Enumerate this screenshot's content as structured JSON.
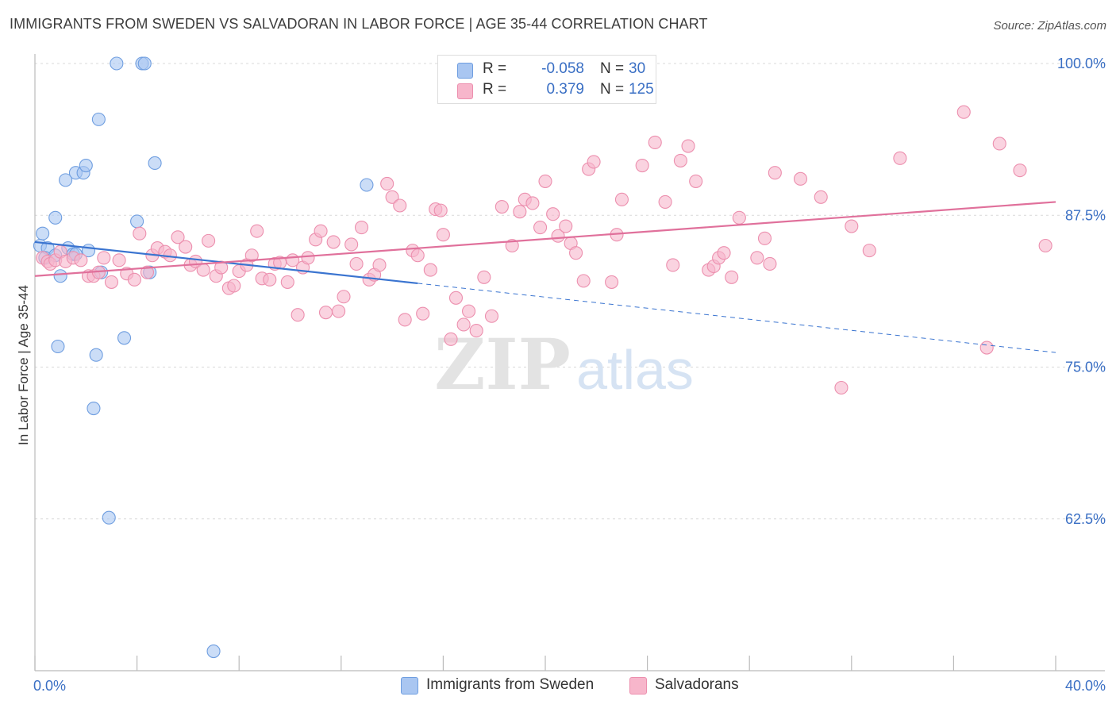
{
  "title": "IMMIGRANTS FROM SWEDEN VS SALVADORAN IN LABOR FORCE | AGE 35-44 CORRELATION CHART",
  "source": "Source: ZipAtlas.com",
  "watermark": {
    "zip": "ZIP",
    "atlas": "atlas"
  },
  "legend_stats": [
    {
      "r_label": "R =",
      "r_value": "-0.058",
      "n_label": "N =",
      "n_value": "30",
      "color": "#a9c6f1",
      "border": "#6f9ee0"
    },
    {
      "r_label": "R =",
      "r_value": "0.379",
      "n_label": "N =",
      "n_value": "125",
      "color": "#f7b6cb",
      "border": "#ec8fae"
    }
  ],
  "bottom_legend": [
    {
      "label": "Immigrants from Sweden",
      "color": "#a9c6f1",
      "border": "#6f9ee0"
    },
    {
      "label": "Salvadorans",
      "color": "#f7b6cb",
      "border": "#ec8fae"
    }
  ],
  "chart_data": {
    "type": "scatter",
    "title": "IMMIGRANTS FROM SWEDEN VS SALVADORAN IN LABOR FORCE | AGE 35-44 CORRELATION CHART",
    "xlabel": "",
    "ylabel": "In Labor Force | Age 35-44",
    "xlim": [
      0,
      40
    ],
    "ylim": [
      50,
      100
    ],
    "x_tick_labels": [
      {
        "value": 0,
        "label": "0.0%"
      },
      {
        "value": 40,
        "label": "40.0%"
      }
    ],
    "y_tick_labels": [
      {
        "value": 100,
        "label": "100.0%"
      },
      {
        "value": 87.5,
        "label": "87.5%"
      },
      {
        "value": 75,
        "label": "75.0%"
      },
      {
        "value": 62.5,
        "label": "62.5%"
      }
    ],
    "grid": true,
    "legend_position": "top-center",
    "series": [
      {
        "name": "Immigrants from Sweden",
        "color": "#a9c6f1",
        "edge": "#6f9ee0",
        "trend": {
          "x_start": 0,
          "y_start": 85.3,
          "x_solid_end": 15,
          "y_solid_end": 81.9,
          "x_dash_end": 40,
          "y_dash_end": 76.2,
          "color": "#3a74d0"
        },
        "points": [
          [
            3.2,
            100.0
          ],
          [
            4.2,
            100.0
          ],
          [
            4.3,
            100.0
          ],
          [
            2.5,
            95.4
          ],
          [
            4.7,
            91.8
          ],
          [
            1.6,
            91.0
          ],
          [
            1.9,
            91.0
          ],
          [
            2.0,
            91.6
          ],
          [
            1.2,
            90.4
          ],
          [
            13.0,
            90.0
          ],
          [
            0.8,
            87.3
          ],
          [
            4.0,
            87.0
          ],
          [
            0.3,
            86.0
          ],
          [
            0.2,
            85.0
          ],
          [
            0.5,
            84.8
          ],
          [
            1.3,
            84.8
          ],
          [
            2.1,
            84.6
          ],
          [
            1.5,
            84.3
          ],
          [
            0.4,
            84.0
          ],
          [
            1.6,
            84.3
          ],
          [
            0.8,
            84.2
          ],
          [
            2.6,
            82.8
          ],
          [
            4.5,
            82.8
          ],
          [
            1.0,
            82.5
          ],
          [
            3.5,
            77.4
          ],
          [
            0.9,
            76.7
          ],
          [
            2.4,
            76.0
          ],
          [
            2.3,
            71.6
          ],
          [
            2.9,
            62.6
          ],
          [
            7.0,
            51.6
          ]
        ]
      },
      {
        "name": "Salvadorans",
        "color": "#f7b6cb",
        "edge": "#ec8fae",
        "trend": {
          "x_start": 0,
          "y_start": 82.5,
          "x_end": 40,
          "y_end": 88.6,
          "color": "#e0709b"
        },
        "points": [
          [
            0.3,
            84.0
          ],
          [
            0.5,
            83.7
          ],
          [
            0.6,
            83.5
          ],
          [
            0.8,
            83.8
          ],
          [
            1.0,
            84.5
          ],
          [
            1.2,
            83.7
          ],
          [
            1.5,
            84.0
          ],
          [
            1.8,
            83.8
          ],
          [
            2.1,
            82.5
          ],
          [
            2.3,
            82.5
          ],
          [
            2.5,
            82.8
          ],
          [
            2.7,
            84.0
          ],
          [
            3.0,
            82.0
          ],
          [
            3.3,
            83.8
          ],
          [
            3.6,
            82.7
          ],
          [
            3.9,
            82.2
          ],
          [
            4.1,
            86.0
          ],
          [
            4.4,
            82.8
          ],
          [
            4.6,
            84.2
          ],
          [
            4.8,
            84.8
          ],
          [
            5.1,
            84.5
          ],
          [
            5.3,
            84.2
          ],
          [
            5.6,
            85.7
          ],
          [
            5.9,
            84.9
          ],
          [
            6.1,
            83.4
          ],
          [
            6.3,
            83.7
          ],
          [
            6.6,
            83.0
          ],
          [
            6.8,
            85.4
          ],
          [
            7.1,
            82.5
          ],
          [
            7.3,
            83.2
          ],
          [
            7.6,
            81.5
          ],
          [
            7.8,
            81.7
          ],
          [
            8.0,
            82.9
          ],
          [
            8.3,
            83.4
          ],
          [
            8.5,
            84.2
          ],
          [
            8.7,
            86.2
          ],
          [
            8.9,
            82.3
          ],
          [
            9.2,
            82.2
          ],
          [
            9.4,
            83.5
          ],
          [
            9.6,
            83.6
          ],
          [
            9.9,
            82.0
          ],
          [
            10.1,
            83.8
          ],
          [
            10.3,
            79.3
          ],
          [
            10.5,
            83.2
          ],
          [
            10.7,
            84.0
          ],
          [
            11.0,
            85.5
          ],
          [
            11.2,
            86.2
          ],
          [
            11.4,
            79.5
          ],
          [
            11.7,
            85.3
          ],
          [
            11.9,
            79.6
          ],
          [
            12.1,
            80.8
          ],
          [
            12.4,
            85.1
          ],
          [
            12.6,
            83.5
          ],
          [
            12.8,
            86.5
          ],
          [
            13.1,
            82.2
          ],
          [
            13.3,
            82.6
          ],
          [
            13.5,
            83.4
          ],
          [
            13.8,
            90.1
          ],
          [
            14.0,
            89.0
          ],
          [
            14.3,
            88.3
          ],
          [
            14.5,
            78.9
          ],
          [
            14.8,
            84.6
          ],
          [
            15.0,
            84.2
          ],
          [
            15.2,
            79.4
          ],
          [
            15.5,
            83.0
          ],
          [
            15.7,
            88.0
          ],
          [
            16.0,
            85.9
          ],
          [
            16.3,
            77.3
          ],
          [
            16.5,
            80.7
          ],
          [
            16.8,
            78.5
          ],
          [
            17.0,
            79.6
          ],
          [
            17.3,
            78.0
          ],
          [
            17.6,
            82.4
          ],
          [
            17.9,
            79.2
          ],
          [
            18.3,
            88.2
          ],
          [
            18.7,
            85.0
          ],
          [
            19.0,
            87.8
          ],
          [
            19.2,
            88.8
          ],
          [
            19.5,
            88.5
          ],
          [
            19.8,
            86.5
          ],
          [
            20.0,
            90.3
          ],
          [
            20.3,
            87.6
          ],
          [
            20.5,
            85.8
          ],
          [
            20.8,
            86.6
          ],
          [
            21.0,
            85.2
          ],
          [
            21.2,
            84.4
          ],
          [
            21.5,
            82.1
          ],
          [
            21.7,
            91.3
          ],
          [
            21.9,
            91.9
          ],
          [
            22.6,
            82.0
          ],
          [
            22.8,
            85.9
          ],
          [
            23.0,
            88.8
          ],
          [
            23.8,
            91.6
          ],
          [
            24.3,
            93.5
          ],
          [
            24.7,
            88.6
          ],
          [
            25.0,
            83.4
          ],
          [
            25.3,
            92.0
          ],
          [
            25.6,
            93.2
          ],
          [
            25.9,
            90.3
          ],
          [
            26.4,
            83.0
          ],
          [
            26.6,
            83.3
          ],
          [
            26.8,
            84.0
          ],
          [
            27.0,
            84.4
          ],
          [
            27.3,
            82.4
          ],
          [
            27.6,
            87.3
          ],
          [
            28.3,
            84.0
          ],
          [
            28.6,
            85.6
          ],
          [
            28.8,
            83.5
          ],
          [
            29.0,
            91.0
          ],
          [
            30.0,
            90.5
          ],
          [
            30.8,
            89.0
          ],
          [
            31.6,
            73.3
          ],
          [
            32.0,
            86.6
          ],
          [
            32.7,
            84.6
          ],
          [
            33.9,
            92.2
          ],
          [
            36.4,
            96.0
          ],
          [
            37.3,
            76.6
          ],
          [
            37.8,
            93.4
          ],
          [
            38.6,
            91.2
          ],
          [
            39.6,
            85.0
          ],
          [
            15.9,
            87.9
          ]
        ]
      }
    ]
  }
}
